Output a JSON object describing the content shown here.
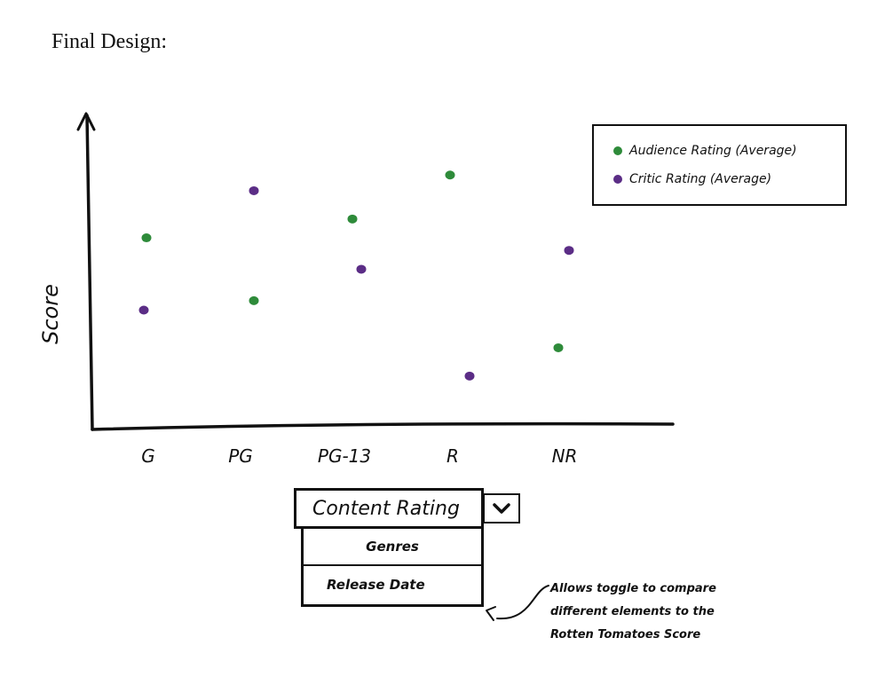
{
  "heading": "Final Design:",
  "chart_data": {
    "type": "scatter",
    "ylabel": "Score",
    "xlabel": "",
    "categories": [
      "G",
      "PG",
      "PG-13",
      "R",
      "NR"
    ],
    "ylim": [
      0,
      10
    ],
    "series": [
      {
        "name": "Audience Rating (Average)",
        "color": "#2e8b3a",
        "values": [
          6.1,
          4.1,
          6.7,
          8.1,
          2.6
        ]
      },
      {
        "name": "Critic Rating (Average)",
        "color": "#5b2d86",
        "values": [
          3.8,
          7.6,
          5.1,
          1.7,
          5.7
        ]
      }
    ],
    "legend": "top-right",
    "grid": false
  },
  "dropdown": {
    "selected": "Content Rating",
    "toggle_icon": "chevron-down-icon",
    "options": [
      "Genres",
      "Release Date"
    ]
  },
  "annotation": {
    "lines": [
      "Allows toggle to compare",
      "different elements to the",
      "Rotten Tomatoes Score"
    ]
  }
}
